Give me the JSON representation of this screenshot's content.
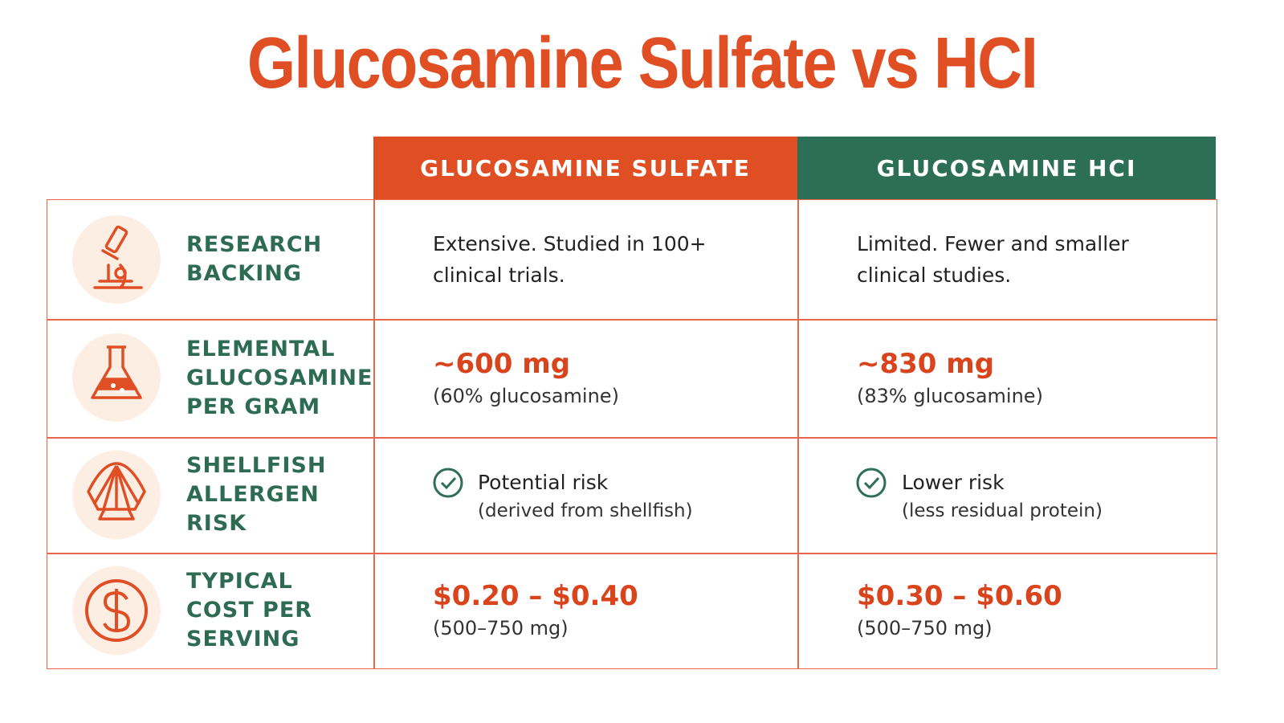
{
  "title": "Glucosamine Sulfate vs HCI",
  "table": {
    "headers": [
      "GLUCOSAMINE SULFATE",
      "GLUCOSAMINE HCI"
    ],
    "rows": [
      {
        "label": "RESEARCH BACKING",
        "cells": [
          {
            "text": "Extensive. Studied in 100+ clinical trials."
          },
          {
            "text": "Limited. Fewer and smaller clinical studies."
          }
        ]
      },
      {
        "label": "ELEMENTAL GLUCOSAMINE PER GRAM",
        "cells": [
          {
            "value": "~600 mg",
            "note": "(60% glucosamine)"
          },
          {
            "value": "~830 mg",
            "note": "(83% glucosamine)"
          }
        ]
      },
      {
        "label": "SHELLFISH ALLERGEN RISK",
        "cells": [
          {
            "text": "Potential risk",
            "note": "(derived from shellfish)"
          },
          {
            "text": "Lower risk",
            "note": "(less residual protein)"
          }
        ]
      },
      {
        "label": "TYPICAL COST PER SERVING",
        "cells": [
          {
            "value": "$0.20 – $0.40",
            "note": "(500–750 mg)"
          },
          {
            "value": "$0.30 – $0.60",
            "note": "(500–750 mg)"
          }
        ]
      }
    ]
  }
}
